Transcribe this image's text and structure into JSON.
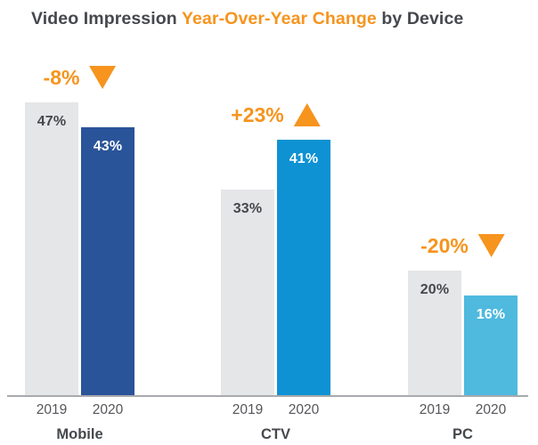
{
  "title": {
    "part1": "Video Impression ",
    "highlight": "Year-Over-Year Change",
    "part2": " by Device"
  },
  "colors": {
    "title_dark": "#45484C",
    "accent_orange": "#F6941E",
    "bar_2019_gray": "#E5E6E8",
    "mobile_2020_navy": "#2A5499",
    "ctv_2020_blue": "#0E92D3",
    "pc_2020_lightblue": "#4FB9DE",
    "axis_line_gray": "#A8AAAD",
    "value_label_on_gray": "#47484C",
    "value_label_on_color": "#FFFFFF",
    "year_label_gray": "#55565A"
  },
  "chart_data": {
    "type": "bar",
    "title": "Video Impression Year-Over-Year Change by Device",
    "categories": [
      "Mobile",
      "CTV",
      "PC"
    ],
    "series_years": [
      "2019",
      "2020"
    ],
    "unit": "%",
    "ylim": [
      0,
      50
    ],
    "grid": false,
    "legend": "none (years labeled under each bar)",
    "groups": [
      {
        "category": "Mobile",
        "bars": [
          {
            "year": "2019",
            "value": 47,
            "label": "47%",
            "color": "#E5E6E8",
            "label_color": "#47484C"
          },
          {
            "year": "2020",
            "value": 43,
            "label": "43%",
            "color": "#2A5499",
            "label_color": "#FFFFFF"
          }
        ],
        "change": {
          "label": "-8%",
          "direction": "down"
        }
      },
      {
        "category": "CTV",
        "bars": [
          {
            "year": "2019",
            "value": 33,
            "label": "33%",
            "color": "#E5E6E8",
            "label_color": "#47484C"
          },
          {
            "year": "2020",
            "value": 41,
            "label": "41%",
            "color": "#0E92D3",
            "label_color": "#FFFFFF"
          }
        ],
        "change": {
          "label": "+23%",
          "direction": "up"
        }
      },
      {
        "category": "PC",
        "bars": [
          {
            "year": "2019",
            "value": 20,
            "label": "20%",
            "color": "#E5E6E8",
            "label_color": "#47484C"
          },
          {
            "year": "2020",
            "value": 16,
            "label": "16%",
            "color": "#4FB9DE",
            "label_color": "#FFFFFF"
          }
        ],
        "change": {
          "label": "-20%",
          "direction": "down"
        }
      }
    ]
  }
}
